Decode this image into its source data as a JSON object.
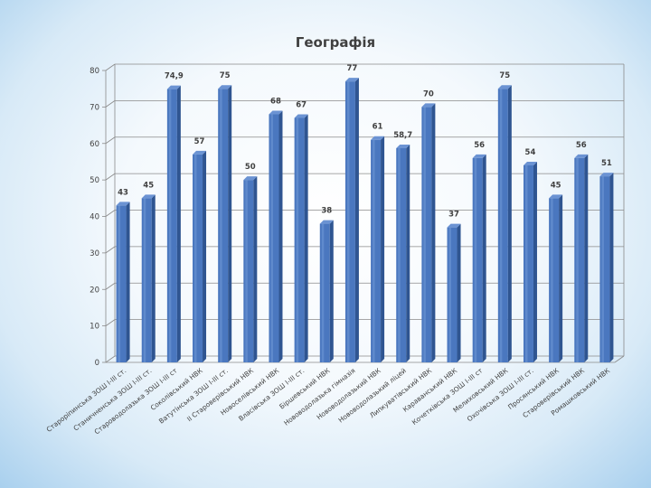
{
  "chart_data": {
    "type": "bar",
    "title": "Географія",
    "categories": [
      "Староріпинська ЗОШ I-III ст.",
      "Станичненська ЗОШ I-III ст.",
      "Староводолазька ЗОШ I-III ст",
      "Соколівський НВК",
      "Ватутінська ЗОШ I-III ст.",
      "II Староверівський НВК",
      "Новоселівський НВК",
      "Власівська ЗОШ I-III ст.",
      "Біршевський НВК",
      "Нововодолазька гімназія",
      "Нововодолазький НВК",
      "Нововодолазький ліцей",
      "Липкуватівський НВК",
      "Караванський НВК",
      "Кочетківська ЗОШ I-III ст",
      "Мелиховський НВК",
      "Охочівська ЗОШ I-III ст.",
      "Просянський НВК",
      "Староверівський НВК",
      "Ромашковський НВК"
    ],
    "values": [
      43,
      45,
      74.9,
      57,
      75,
      50,
      68,
      67,
      38,
      77,
      61,
      58.7,
      70,
      37,
      56,
      75,
      54,
      45,
      56,
      51
    ],
    "data_labels": [
      "43",
      "45",
      "74,9",
      "57",
      "75",
      "50",
      "68",
      "67",
      "38",
      "77",
      "61",
      "58,7",
      "70",
      "37",
      "56",
      "75",
      "54",
      "45",
      "56",
      "51"
    ],
    "ylim": [
      0,
      80
    ],
    "yticks": [
      0,
      10,
      20,
      30,
      40,
      50,
      60,
      70,
      80
    ],
    "grid": true,
    "legend": "none",
    "bar_color": "#4a77bf",
    "bar_top_color": "#3a66ac",
    "grid_color": "#8a8a8a",
    "text_color": "#404040"
  }
}
